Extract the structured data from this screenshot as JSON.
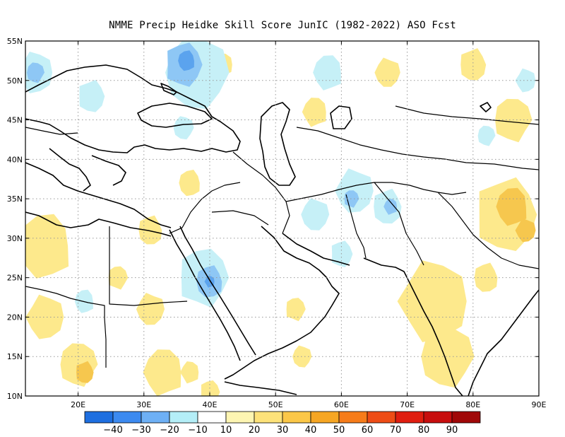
{
  "title": "NMME Precip Heidke Skill Score JunIC (1982-2022) ASO Fcst",
  "map": {
    "lon_range": [
      12,
      90
    ],
    "lat_range": [
      10,
      55
    ],
    "lat_ticks": [
      {
        "v": 55,
        "label": "55N"
      },
      {
        "v": 50,
        "label": "50N"
      },
      {
        "v": 45,
        "label": "45N"
      },
      {
        "v": 40,
        "label": "40N"
      },
      {
        "v": 35,
        "label": "35N"
      },
      {
        "v": 30,
        "label": "30N"
      },
      {
        "v": 25,
        "label": "25N"
      },
      {
        "v": 20,
        "label": "20N"
      },
      {
        "v": 15,
        "label": "15N"
      },
      {
        "v": 10,
        "label": "10N"
      }
    ],
    "lon_ticks": [
      {
        "v": 20,
        "label": "20E"
      },
      {
        "v": 30,
        "label": "30E"
      },
      {
        "v": 40,
        "label": "40E"
      },
      {
        "v": 50,
        "label": "50E"
      },
      {
        "v": 60,
        "label": "60E"
      },
      {
        "v": 70,
        "label": "70E"
      },
      {
        "v": 80,
        "label": "80E"
      },
      {
        "v": 90,
        "label": "90E"
      }
    ],
    "grid": "dotted",
    "regions": [
      {
        "color": "#e8a83a",
        "lon": 13.5,
        "lat": 27.5,
        "r": 1.8
      },
      {
        "color": "#f6c74e",
        "lon": 14.5,
        "lat": 28.5,
        "r": 3.2
      },
      {
        "color": "#fde98c",
        "lon": 15,
        "lat": 29,
        "r": 4.4
      },
      {
        "color": "#fde98c",
        "lon": 15,
        "lat": 20,
        "r": 3.0
      },
      {
        "color": "#fde98c",
        "lon": 20,
        "lat": 14,
        "r": 3.0
      },
      {
        "color": "#f6c74e",
        "lon": 21,
        "lat": 13,
        "r": 1.5
      },
      {
        "color": "#fde98c",
        "lon": 33,
        "lat": 13,
        "r": 3.2
      },
      {
        "color": "#fde98c",
        "lon": 31,
        "lat": 21,
        "r": 2.2
      },
      {
        "color": "#fde98c",
        "lon": 26,
        "lat": 25,
        "r": 1.6
      },
      {
        "color": "#fde98c",
        "lon": 31,
        "lat": 31,
        "r": 2.0
      },
      {
        "color": "#fde98c",
        "lon": 37,
        "lat": 13,
        "r": 1.5
      },
      {
        "color": "#fde98c",
        "lon": 54,
        "lat": 15,
        "r": 1.5
      },
      {
        "color": "#fde98c",
        "lon": 40,
        "lat": 10.5,
        "r": 1.6
      },
      {
        "color": "#fde98c",
        "lon": 37,
        "lat": 37,
        "r": 1.8
      },
      {
        "color": "#fde98c",
        "lon": 74,
        "lat": 22,
        "r": 5.5
      },
      {
        "color": "#fde98c",
        "lon": 76,
        "lat": 15,
        "r": 4.2
      },
      {
        "color": "#fde98c",
        "lon": 85,
        "lat": 33,
        "r": 5.0
      },
      {
        "color": "#f6c74e",
        "lon": 86,
        "lat": 34,
        "r": 2.6
      },
      {
        "color": "#f6c74e",
        "lon": 88,
        "lat": 31,
        "r": 1.6
      },
      {
        "color": "#fde98c",
        "lon": 86,
        "lat": 45,
        "r": 3.0
      },
      {
        "color": "#fde98c",
        "lon": 80,
        "lat": 52,
        "r": 2.2
      },
      {
        "color": "#fde98c",
        "lon": 56,
        "lat": 46,
        "r": 2.0
      },
      {
        "color": "#fde98c",
        "lon": 67,
        "lat": 51,
        "r": 2.0
      },
      {
        "color": "#fde98c",
        "lon": 53,
        "lat": 21,
        "r": 1.6
      },
      {
        "color": "#fde98c",
        "lon": 82,
        "lat": 25,
        "r": 2.0
      },
      {
        "color": "#fde98c",
        "lon": 42,
        "lat": 52,
        "r": 1.6
      },
      {
        "color": "#c6f0f7",
        "lon": 38,
        "lat": 51,
        "r": 5.0
      },
      {
        "color": "#8ec7f5",
        "lon": 36,
        "lat": 52,
        "r": 3.0
      },
      {
        "color": "#5ba3ee",
        "lon": 36.5,
        "lat": 52.5,
        "r": 1.4
      },
      {
        "color": "#c6f0f7",
        "lon": 13.5,
        "lat": 51,
        "r": 2.8
      },
      {
        "color": "#8ec7f5",
        "lon": 13.5,
        "lat": 51,
        "r": 1.4
      },
      {
        "color": "#c6f0f7",
        "lon": 22,
        "lat": 48,
        "r": 2.2
      },
      {
        "color": "#c6f0f7",
        "lon": 58,
        "lat": 51,
        "r": 2.4
      },
      {
        "color": "#c6f0f7",
        "lon": 62,
        "lat": 36,
        "r": 3.0
      },
      {
        "color": "#8ec7f5",
        "lon": 61.5,
        "lat": 35,
        "r": 1.2
      },
      {
        "color": "#c6f0f7",
        "lon": 67,
        "lat": 34,
        "r": 2.4
      },
      {
        "color": "#8ec7f5",
        "lon": 67.5,
        "lat": 34,
        "r": 1.1
      },
      {
        "color": "#c6f0f7",
        "lon": 56,
        "lat": 33,
        "r": 2.2
      },
      {
        "color": "#c6f0f7",
        "lon": 39,
        "lat": 25,
        "r": 4.0
      },
      {
        "color": "#8ec7f5",
        "lon": 40,
        "lat": 24.5,
        "r": 2.2
      },
      {
        "color": "#5ba3ee",
        "lon": 40,
        "lat": 24.5,
        "r": 0.8
      },
      {
        "color": "#c6f0f7",
        "lon": 36,
        "lat": 44,
        "r": 1.6
      },
      {
        "color": "#c6f0f7",
        "lon": 60,
        "lat": 28,
        "r": 1.8
      },
      {
        "color": "#c6f0f7",
        "lon": 21,
        "lat": 22,
        "r": 1.6
      },
      {
        "color": "#c6f0f7",
        "lon": 88,
        "lat": 50,
        "r": 1.6
      },
      {
        "color": "#c6f0f7",
        "lon": 82,
        "lat": 43,
        "r": 1.4
      }
    ]
  },
  "colorbar": {
    "colors": [
      "#1e6fe0",
      "#3c8af0",
      "#6eb0f5",
      "#b4eef7",
      "#ffffff",
      "#fdf5b2",
      "#fde27a",
      "#fbc748",
      "#f6a623",
      "#f67c1a",
      "#ee4d16",
      "#e01e10",
      "#c70e0e",
      "#a00808"
    ],
    "labels": [
      "−40",
      "−30",
      "−20",
      "−10",
      "10",
      "20",
      "30",
      "40",
      "50",
      "60",
      "70",
      "80",
      "90"
    ]
  }
}
